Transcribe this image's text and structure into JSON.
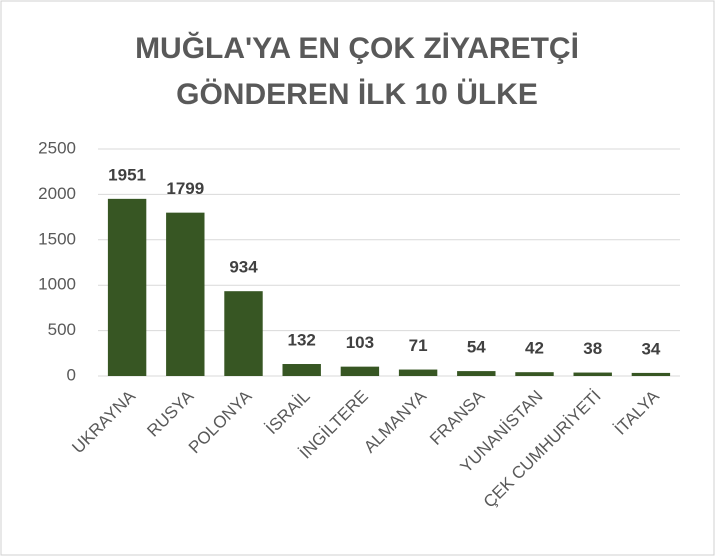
{
  "chart_data": {
    "type": "bar",
    "title": "MUĞLA'YA EN ÇOK ZİYARETÇİ GÖNDEREN İLK 10 ÜLKE",
    "categories": [
      "UKRAYNA",
      "RUSYA",
      "POLONYA",
      "İSRAİL",
      "İNGİLTERE",
      "ALMANYA",
      "FRANSA",
      "YUNANİSTAN",
      "ÇEK CUMHURİYETİ",
      "İTALYA"
    ],
    "values": [
      1951,
      1799,
      934,
      132,
      103,
      71,
      54,
      42,
      38,
      34
    ],
    "color": "#375623",
    "ylim": [
      0,
      2500
    ],
    "yticks": [
      0,
      500,
      1000,
      1500,
      2000,
      2500
    ],
    "grid": true
  }
}
